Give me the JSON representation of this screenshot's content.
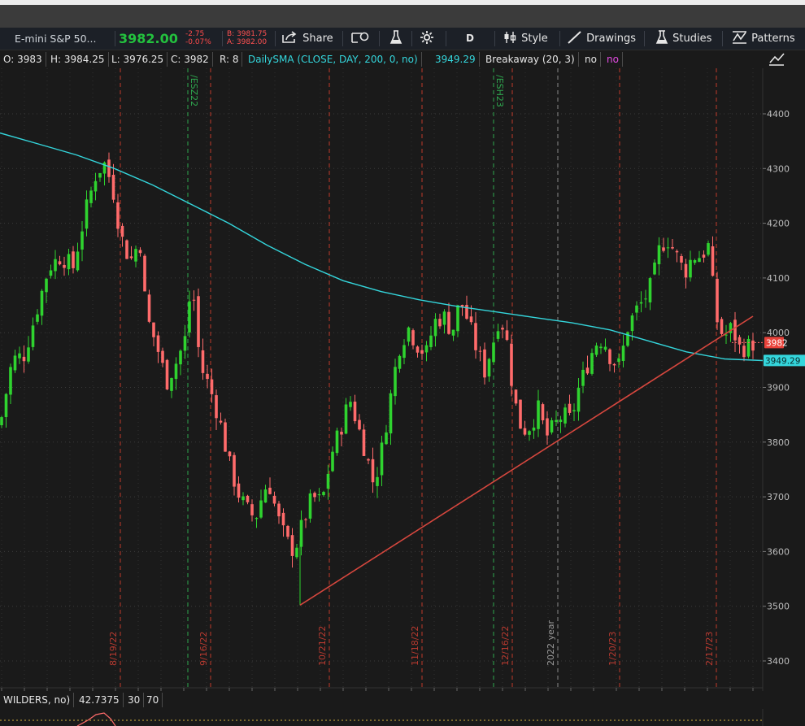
{
  "toolbar": {
    "symbol": "E-mini S&P 50...",
    "last": "3982.00",
    "net_change": "-2.75",
    "net_change_pct": "-0.07%",
    "bid": "B: 3981.75",
    "ask": "A: 3982.00",
    "share": "Share",
    "aggregation": "D",
    "style": "Style",
    "drawings": "Drawings",
    "studies": "Studies",
    "patterns": "Patterns"
  },
  "study_bar": {
    "open": "O: 3983",
    "high": "H: 3984.25",
    "low": "L: 3976.25",
    "close": "C: 3982",
    "range": "R: 8",
    "sma_label": "DailySMA (CLOSE, DAY, 200, 0, no)",
    "sma_value": "3949.29",
    "breakaway_label": "Breakaway (20, 3)",
    "breakaway_v1": "no",
    "breakaway_v2": "no"
  },
  "rsi_bar": {
    "label": "WILDERS, no)",
    "value": "42.7375",
    "lower": "30",
    "upper": "70"
  },
  "colors": {
    "up": "#2fd32f",
    "down": "#ff6b6b",
    "sma": "#34d6dc",
    "trendline": "#d6473e",
    "expiry": "#2fa84f",
    "month": "#c0392b"
  },
  "chart_data": {
    "type": "candlestick",
    "ylim": [
      3340,
      4500
    ],
    "yticks": [
      3400,
      3500,
      3600,
      3700,
      3800,
      3900,
      4000,
      4100,
      4200,
      4300,
      4400
    ],
    "date_labels": [
      "8/19/22",
      "9/16/22",
      "10/21/22",
      "11/18/22",
      "12/16/22",
      "2022 year",
      "1/20/23",
      "2/17/23"
    ],
    "expiry_labels": [
      "/ESZ22",
      "/ESH23"
    ],
    "last_price_tag": "3982",
    "sma_tag": "3949.29",
    "trendline": {
      "from": [
        "10/13/22",
        3502
      ],
      "to": [
        "3/2/23",
        4030
      ]
    },
    "sma_200": [
      4365,
      4345,
      4325,
      4300,
      4270,
      4235,
      4200,
      4160,
      4125,
      4095,
      4075,
      4060,
      4048,
      4038,
      4028,
      4018,
      4005,
      3985,
      3965,
      3952,
      3949
    ]
  }
}
